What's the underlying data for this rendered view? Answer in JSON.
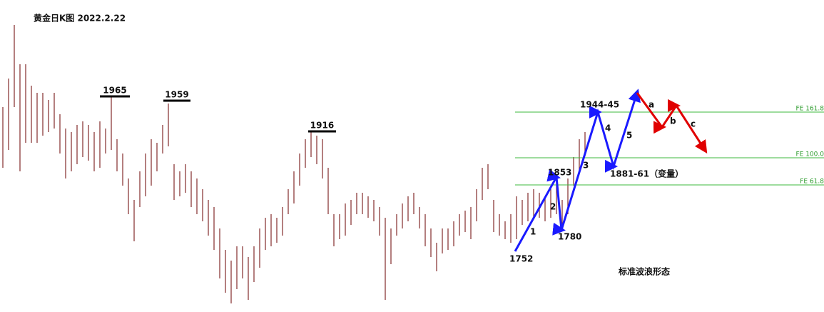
{
  "chart_data": {
    "type": "ohlc",
    "title": "黄金日K图 2022.2.22",
    "color": "#8b3a3a",
    "ylim": [
      1663,
      2100
    ],
    "high": [
      1950,
      1990,
      2065,
      2010,
      2010,
      1980,
      1970,
      1970,
      1960,
      1970,
      1940,
      1920,
      1915,
      1925,
      1930,
      1925,
      1915,
      1930,
      1920,
      1965,
      1905,
      1885,
      1850,
      1820,
      1860,
      1885,
      1905,
      1900,
      1925,
      1955,
      1870,
      1860,
      1870,
      1860,
      1850,
      1835,
      1820,
      1810,
      1780,
      1750,
      1735,
      1755,
      1755,
      1740,
      1755,
      1780,
      1795,
      1800,
      1795,
      1810,
      1835,
      1860,
      1885,
      1905,
      1915,
      1910,
      1905,
      1865,
      1800,
      1800,
      1815,
      1820,
      1830,
      1830,
      1825,
      1820,
      1810,
      1795,
      1780,
      1800,
      1815,
      1825,
      1830,
      1810,
      1800,
      1780,
      1760,
      1780,
      1780,
      1790,
      1800,
      1805,
      1810,
      1835,
      1865,
      1870,
      1820,
      1800,
      1790,
      1800,
      1825,
      1820,
      1830,
      1835,
      1830,
      1825,
      1835,
      1845,
      1820,
      1850,
      1880,
      1905,
      1915
    ],
    "low": [
      1865,
      1890,
      1950,
      1860,
      1900,
      1900,
      1900,
      1910,
      1915,
      1920,
      1885,
      1850,
      1860,
      1870,
      1880,
      1875,
      1860,
      1865,
      1885,
      1890,
      1860,
      1840,
      1800,
      1762,
      1810,
      1825,
      1840,
      1860,
      1885,
      1895,
      1820,
      1825,
      1830,
      1810,
      1800,
      1790,
      1770,
      1750,
      1710,
      1690,
      1675,
      1695,
      1710,
      1680,
      1705,
      1725,
      1750,
      1755,
      1760,
      1770,
      1800,
      1815,
      1840,
      1865,
      1880,
      1870,
      1850,
      1800,
      1755,
      1765,
      1770,
      1785,
      1800,
      1800,
      1795,
      1790,
      1770,
      1680,
      1730,
      1770,
      1780,
      1790,
      1800,
      1780,
      1755,
      1740,
      1720,
      1745,
      1750,
      1755,
      1770,
      1775,
      1765,
      1790,
      1820,
      1835,
      1775,
      1770,
      1765,
      1760,
      1765,
      1785,
      1790,
      1795,
      1795,
      1790,
      1795,
      1800,
      1780,
      1800,
      1840,
      1860,
      1885
    ],
    "peak_levels": [
      1965,
      1959,
      1916
    ],
    "fe_levels": [
      {
        "value": 1943,
        "label": "FE 161.8"
      },
      {
        "value": 1879,
        "label": "FE 100.0"
      },
      {
        "value": 1841,
        "label": "FE 61.8"
      }
    ],
    "wave_prices": [
      1752,
      1853,
      1780
    ],
    "target_labels": [
      "1944-45",
      "1881-61（变量）"
    ],
    "wave_labels": [
      "1",
      "2",
      "3",
      "4",
      "5",
      "a",
      "b",
      "c"
    ],
    "pattern_label": "标准波浪形态"
  }
}
